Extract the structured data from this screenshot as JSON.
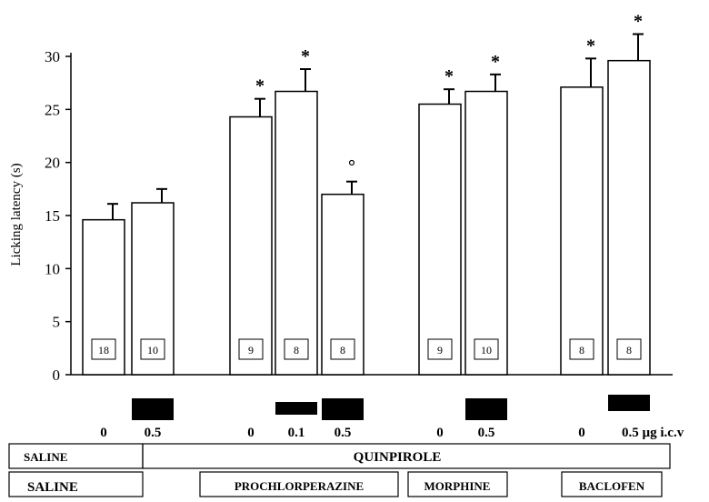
{
  "chart_data": {
    "type": "bar",
    "ylabel": "Licking latency (s)",
    "ylim": [
      0,
      30
    ],
    "yticks": [
      "0",
      "5",
      "10",
      "15",
      "20",
      "25",
      "30"
    ],
    "bars": [
      {
        "value": 14.6,
        "error": 1.5,
        "n": "18",
        "dose": "0",
        "marker": "",
        "drug_marker": false
      },
      {
        "value": 16.2,
        "error": 1.3,
        "n": "10",
        "dose": "0.5",
        "marker": "",
        "drug_marker": true
      },
      {
        "value": 24.3,
        "error": 1.7,
        "n": "9",
        "dose": "0",
        "marker": "*",
        "drug_marker": false
      },
      {
        "value": 26.7,
        "error": 2.1,
        "n": "8",
        "dose": "0.1",
        "marker": "*",
        "drug_marker": true
      },
      {
        "value": 17.0,
        "error": 1.2,
        "n": "8",
        "dose": "0.5",
        "marker": "°",
        "drug_marker": true
      },
      {
        "value": 25.5,
        "error": 1.4,
        "n": "9",
        "dose": "0",
        "marker": "*",
        "drug_marker": false
      },
      {
        "value": 26.7,
        "error": 1.6,
        "n": "10",
        "dose": "0.5",
        "marker": "*",
        "drug_marker": true
      },
      {
        "value": 27.1,
        "error": 2.7,
        "n": "8",
        "dose": "0",
        "marker": "*",
        "drug_marker": false
      },
      {
        "value": 29.6,
        "error": 2.5,
        "n": "8",
        "dose": "0.5 µg i.c.v",
        "marker": "*",
        "drug_marker": true
      }
    ],
    "row1_labels": {
      "saline": "SALINE",
      "quinpirole": "QUINPIROLE"
    },
    "row2_labels": {
      "saline": "SALINE",
      "prochlorperazine": "PROCHLORPERAZINE",
      "morphine": "MORPHINE",
      "baclofen": "BACLOFEN"
    },
    "grid": false,
    "legend": "none"
  }
}
